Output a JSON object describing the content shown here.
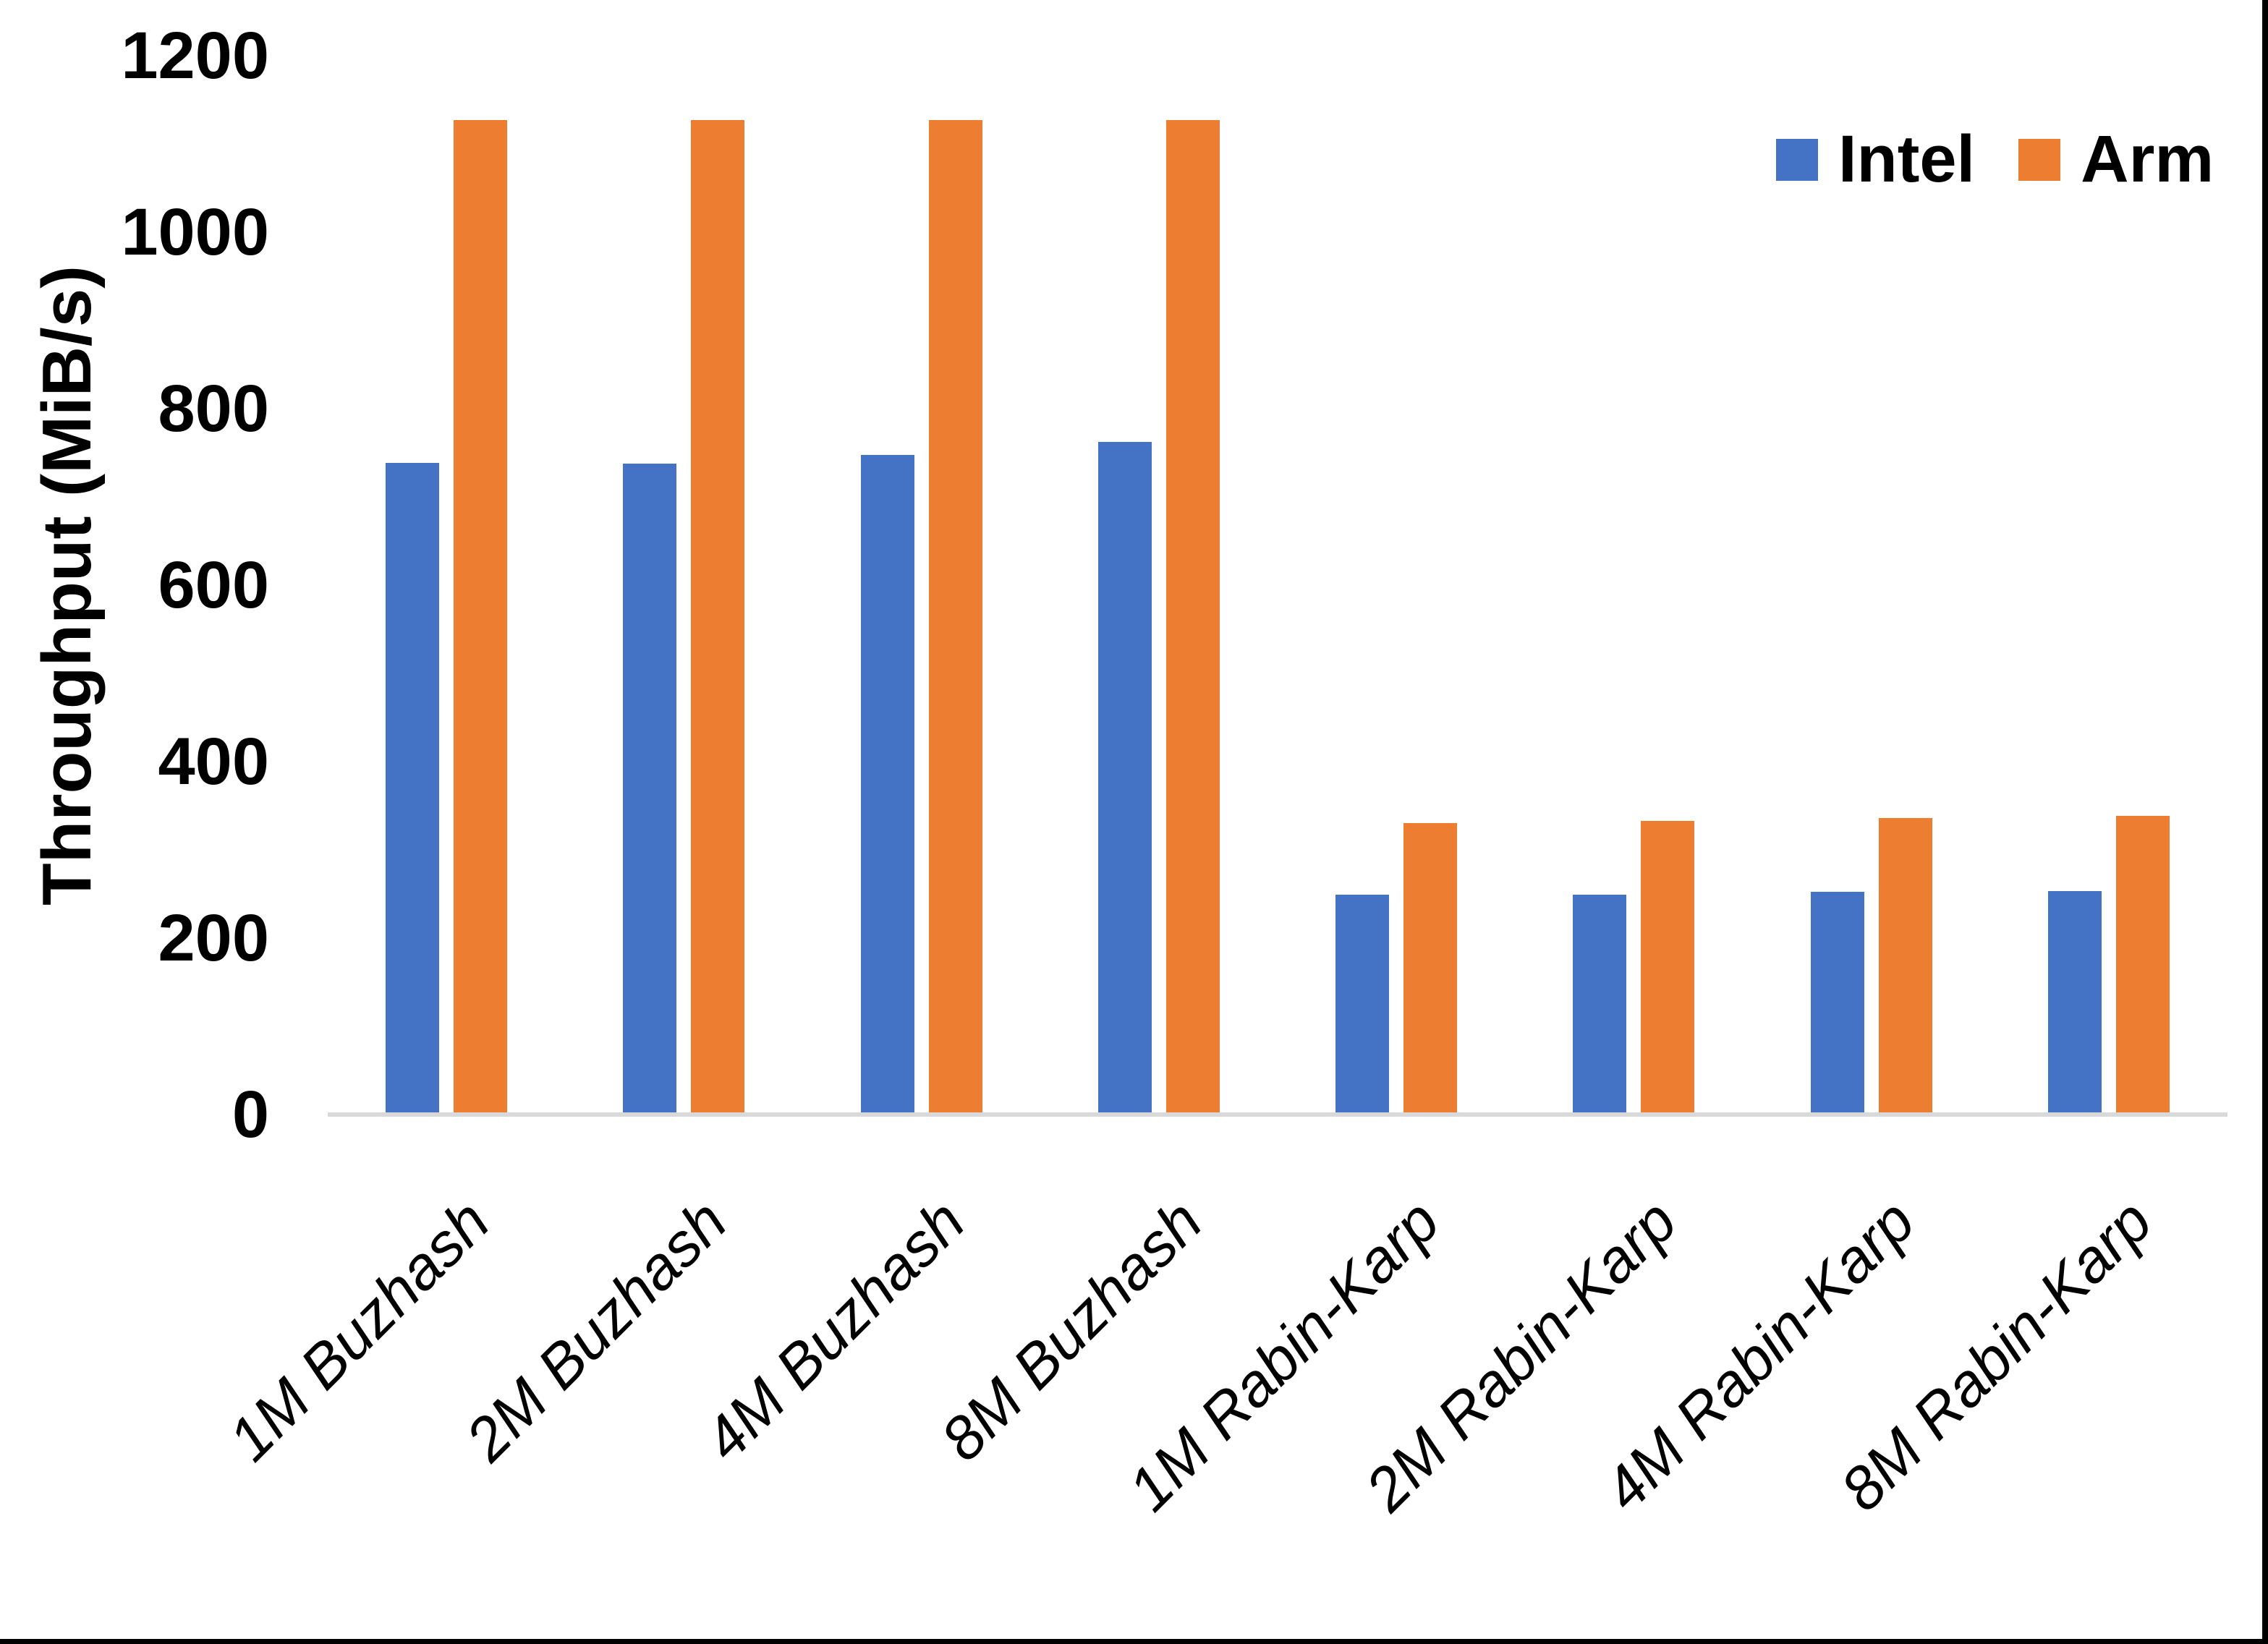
{
  "chart_data": {
    "type": "bar",
    "title": "",
    "xlabel": "",
    "ylabel": "Throughput (MiB/s)",
    "categories": [
      "1M Buzhash",
      "2M Buzhash",
      "4M Buzhash",
      "8M Buzhash",
      "1M Rabin-Karp",
      "2M Rabin-Karp",
      "4M Rabin-Karp",
      "8M Rabin-Karp"
    ],
    "series": [
      {
        "name": "Intel",
        "color": "#4472C4",
        "values": [
          736,
          735,
          745,
          760,
          247,
          247,
          250,
          251
        ]
      },
      {
        "name": "Arm",
        "color": "#ED7D31",
        "values": [
          1125,
          1125,
          1125,
          1125,
          328,
          330,
          334,
          336
        ]
      }
    ],
    "ylim": [
      0,
      1200
    ],
    "yticks": [
      0,
      200,
      400,
      600,
      800,
      1000,
      1200
    ],
    "grid": false,
    "legend_position": "top-right",
    "axis_line_color": "#D9D9D9",
    "border_color": "#000000"
  }
}
